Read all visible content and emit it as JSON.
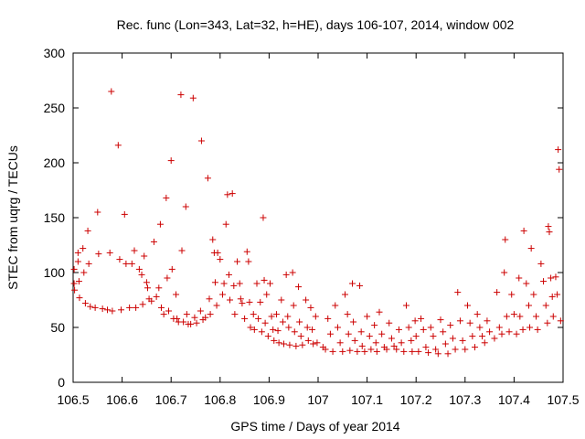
{
  "chart_data": {
    "type": "scatter",
    "title": "Rec. func (Lon=343, Lat=32, h=HE), days 106-107, 2014, window 002",
    "xlabel": "GPS time / Days of year 2014",
    "ylabel": "STEC from uqrg / TECUs",
    "xlim": [
      106.5,
      107.5
    ],
    "ylim": [
      0,
      300
    ],
    "xticks": [
      "106.5",
      "106.6",
      "106.7",
      "106.8",
      "106.9",
      "107",
      "107.1",
      "107.2",
      "107.3",
      "107.4",
      "107.5"
    ],
    "yticks": [
      "0",
      "50",
      "100",
      "150",
      "200",
      "250",
      "300"
    ],
    "grid": false,
    "marker": "plus",
    "color": "#cc0000",
    "series": [
      {
        "points": [
          [
            106.502,
            103
          ],
          [
            106.502,
            90
          ],
          [
            106.503,
            84
          ],
          [
            106.51,
            118
          ],
          [
            106.51,
            110
          ],
          [
            106.512,
            92
          ],
          [
            106.513,
            77
          ],
          [
            106.52,
            122
          ],
          [
            106.522,
            100
          ],
          [
            106.525,
            72
          ],
          [
            106.53,
            138
          ],
          [
            106.532,
            108
          ],
          [
            106.535,
            69
          ],
          [
            106.545,
            68
          ],
          [
            106.55,
            155
          ],
          [
            106.552,
            117
          ],
          [
            106.56,
            67
          ],
          [
            106.57,
            66
          ],
          [
            106.575,
            118
          ],
          [
            106.578,
            265
          ],
          [
            106.58,
            65
          ],
          [
            106.592,
            216
          ],
          [
            106.595,
            112
          ],
          [
            106.598,
            66
          ],
          [
            106.605,
            153
          ],
          [
            106.608,
            108
          ],
          [
            106.615,
            68
          ],
          [
            106.62,
            108
          ],
          [
            106.625,
            120
          ],
          [
            106.628,
            68
          ],
          [
            106.635,
            103
          ],
          [
            106.64,
            98
          ],
          [
            106.642,
            71
          ],
          [
            106.645,
            115
          ],
          [
            106.65,
            91
          ],
          [
            106.652,
            86
          ],
          [
            106.655,
            76
          ],
          [
            106.66,
            74
          ],
          [
            106.665,
            128
          ],
          [
            106.67,
            78
          ],
          [
            106.675,
            86
          ],
          [
            106.678,
            144
          ],
          [
            106.68,
            68
          ],
          [
            106.685,
            62
          ],
          [
            106.69,
            168
          ],
          [
            106.692,
            95
          ],
          [
            106.695,
            65
          ],
          [
            106.7,
            202
          ],
          [
            106.702,
            103
          ],
          [
            106.705,
            58
          ],
          [
            106.71,
            80
          ],
          [
            106.712,
            58
          ],
          [
            106.715,
            55
          ],
          [
            106.72,
            262
          ],
          [
            106.722,
            120
          ],
          [
            106.725,
            55
          ],
          [
            106.73,
            160
          ],
          [
            106.732,
            62
          ],
          [
            106.735,
            53
          ],
          [
            106.74,
            53
          ],
          [
            106.745,
            259
          ],
          [
            106.748,
            59
          ],
          [
            106.752,
            54
          ],
          [
            106.76,
            65
          ],
          [
            106.762,
            220
          ],
          [
            106.765,
            57
          ],
          [
            106.77,
            59
          ],
          [
            106.775,
            186
          ],
          [
            106.778,
            76
          ],
          [
            106.78,
            62
          ],
          [
            106.785,
            130
          ],
          [
            106.788,
            118
          ],
          [
            106.79,
            91
          ],
          [
            106.793,
            70
          ],
          [
            106.795,
            118
          ],
          [
            106.8,
            112
          ],
          [
            106.805,
            80
          ],
          [
            106.808,
            90
          ],
          [
            106.812,
            144
          ],
          [
            106.815,
            171
          ],
          [
            106.818,
            98
          ],
          [
            106.82,
            75
          ],
          [
            106.825,
            172
          ],
          [
            106.828,
            88
          ],
          [
            106.83,
            62
          ],
          [
            106.835,
            110
          ],
          [
            106.84,
            90
          ],
          [
            106.842,
            76
          ],
          [
            106.845,
            72
          ],
          [
            106.85,
            58
          ],
          [
            106.855,
            119
          ],
          [
            106.858,
            110
          ],
          [
            106.86,
            73
          ],
          [
            106.862,
            50
          ],
          [
            106.868,
            62
          ],
          [
            106.87,
            48
          ],
          [
            106.875,
            90
          ],
          [
            106.878,
            58
          ],
          [
            106.882,
            73
          ],
          [
            106.885,
            46
          ],
          [
            106.888,
            150
          ],
          [
            106.89,
            93
          ],
          [
            106.892,
            54
          ],
          [
            106.895,
            80
          ],
          [
            106.898,
            42
          ],
          [
            106.902,
            90
          ],
          [
            106.905,
            60
          ],
          [
            106.908,
            48
          ],
          [
            106.91,
            38
          ],
          [
            106.915,
            62
          ],
          [
            106.918,
            47
          ],
          [
            106.92,
            36
          ],
          [
            106.925,
            75
          ],
          [
            106.928,
            55
          ],
          [
            106.93,
            35
          ],
          [
            106.935,
            98
          ],
          [
            106.938,
            60
          ],
          [
            106.94,
            50
          ],
          [
            106.942,
            34
          ],
          [
            106.948,
            100
          ],
          [
            106.95,
            70
          ],
          [
            106.952,
            46
          ],
          [
            106.955,
            33
          ],
          [
            106.96,
            87
          ],
          [
            106.962,
            55
          ],
          [
            106.965,
            42
          ],
          [
            106.968,
            34
          ],
          [
            106.975,
            75
          ],
          [
            106.978,
            50
          ],
          [
            106.98,
            38
          ],
          [
            106.985,
            68
          ],
          [
            106.988,
            48
          ],
          [
            106.99,
            35
          ],
          [
            106.995,
            60
          ],
          [
            106.998,
            36
          ],
          [
            107.01,
            32
          ],
          [
            107.015,
            30
          ],
          [
            107.02,
            58
          ],
          [
            107.025,
            44
          ],
          [
            107.03,
            28
          ],
          [
            107.035,
            70
          ],
          [
            107.04,
            50
          ],
          [
            107.045,
            36
          ],
          [
            107.05,
            28
          ],
          [
            107.055,
            80
          ],
          [
            107.06,
            62
          ],
          [
            107.062,
            44
          ],
          [
            107.065,
            29
          ],
          [
            107.07,
            90
          ],
          [
            107.072,
            55
          ],
          [
            107.075,
            38
          ],
          [
            107.08,
            28
          ],
          [
            107.085,
            88
          ],
          [
            107.088,
            46
          ],
          [
            107.09,
            33
          ],
          [
            107.095,
            28
          ],
          [
            107.1,
            60
          ],
          [
            107.105,
            42
          ],
          [
            107.108,
            30
          ],
          [
            107.115,
            52
          ],
          [
            107.118,
            36
          ],
          [
            107.12,
            28
          ],
          [
            107.125,
            64
          ],
          [
            107.13,
            44
          ],
          [
            107.135,
            32
          ],
          [
            107.14,
            30
          ],
          [
            107.145,
            54
          ],
          [
            107.15,
            40
          ],
          [
            107.155,
            33
          ],
          [
            107.16,
            30
          ],
          [
            107.165,
            48
          ],
          [
            107.17,
            36
          ],
          [
            107.175,
            28
          ],
          [
            107.18,
            70
          ],
          [
            107.185,
            50
          ],
          [
            107.19,
            38
          ],
          [
            107.192,
            28
          ],
          [
            107.198,
            56
          ],
          [
            107.2,
            42
          ],
          [
            107.205,
            28
          ],
          [
            107.21,
            58
          ],
          [
            107.215,
            48
          ],
          [
            107.22,
            32
          ],
          [
            107.225,
            27
          ],
          [
            107.23,
            50
          ],
          [
            107.235,
            42
          ],
          [
            107.24,
            30
          ],
          [
            107.245,
            26
          ],
          [
            107.25,
            57
          ],
          [
            107.255,
            46
          ],
          [
            107.26,
            35
          ],
          [
            107.265,
            26
          ],
          [
            107.27,
            52
          ],
          [
            107.275,
            40
          ],
          [
            107.28,
            30
          ],
          [
            107.285,
            82
          ],
          [
            107.29,
            56
          ],
          [
            107.295,
            38
          ],
          [
            107.3,
            30
          ],
          [
            107.305,
            70
          ],
          [
            107.31,
            54
          ],
          [
            107.315,
            42
          ],
          [
            107.32,
            32
          ],
          [
            107.325,
            62
          ],
          [
            107.33,
            50
          ],
          [
            107.335,
            42
          ],
          [
            107.34,
            36
          ],
          [
            107.345,
            56
          ],
          [
            107.35,
            46
          ],
          [
            107.36,
            40
          ],
          [
            107.365,
            82
          ],
          [
            107.37,
            50
          ],
          [
            107.375,
            44
          ],
          [
            107.38,
            100
          ],
          [
            107.382,
            130
          ],
          [
            107.385,
            60
          ],
          [
            107.39,
            46
          ],
          [
            107.395,
            80
          ],
          [
            107.4,
            62
          ],
          [
            107.405,
            44
          ],
          [
            107.41,
            95
          ],
          [
            107.412,
            60
          ],
          [
            107.418,
            48
          ],
          [
            107.42,
            138
          ],
          [
            107.425,
            90
          ],
          [
            107.43,
            70
          ],
          [
            107.432,
            50
          ],
          [
            107.435,
            122
          ],
          [
            107.44,
            80
          ],
          [
            107.445,
            60
          ],
          [
            107.448,
            48
          ],
          [
            107.455,
            108
          ],
          [
            107.46,
            92
          ],
          [
            107.465,
            70
          ],
          [
            107.468,
            54
          ],
          [
            107.47,
            142
          ],
          [
            107.472,
            137
          ],
          [
            107.475,
            95
          ],
          [
            107.478,
            78
          ],
          [
            107.48,
            60
          ],
          [
            107.485,
            96
          ],
          [
            107.488,
            80
          ],
          [
            107.49,
            212
          ],
          [
            107.492,
            194
          ],
          [
            107.495,
            56
          ]
        ]
      }
    ]
  }
}
